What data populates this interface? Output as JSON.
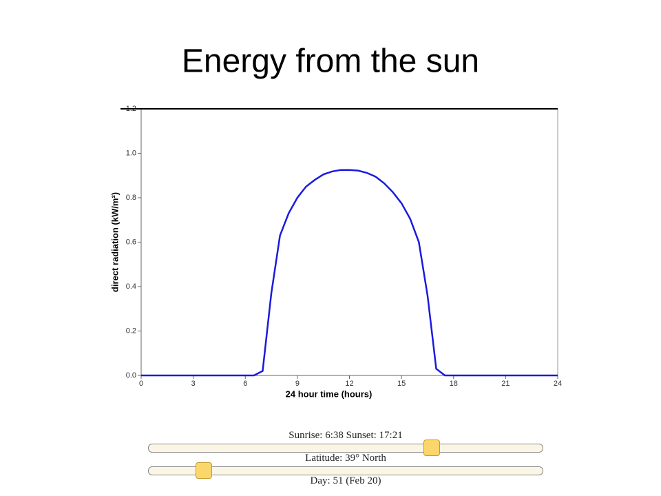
{
  "slide_title": "Energy from the sun",
  "chart_data": {
    "type": "line",
    "xlabel": "24 hour time (hours)",
    "ylabel": "direct radiation (kW/m²)",
    "x": [
      0,
      0.5,
      1,
      1.5,
      2,
      2.5,
      3,
      3.5,
      4,
      4.5,
      5,
      5.5,
      6,
      6.5,
      7,
      7.5,
      8,
      8.5,
      9,
      9.5,
      10,
      10.5,
      11,
      11.5,
      12,
      12.5,
      13,
      13.5,
      14,
      14.5,
      15,
      15.5,
      16,
      16.5,
      17,
      17.5,
      18,
      18.5,
      19,
      19.5,
      20,
      20.5,
      21,
      21.5,
      22,
      22.5,
      23,
      23.5,
      24
    ],
    "series": [
      {
        "name": "direct radiation",
        "color": "#1a1adf",
        "values": [
          0,
          0,
          0,
          0,
          0,
          0,
          0,
          0,
          0,
          0,
          0,
          0,
          0,
          0,
          0.02,
          0.37,
          0.63,
          0.73,
          0.8,
          0.85,
          0.88,
          0.905,
          0.918,
          0.925,
          0.925,
          0.922,
          0.912,
          0.895,
          0.865,
          0.825,
          0.775,
          0.705,
          0.6,
          0.36,
          0.03,
          0,
          0,
          0,
          0,
          0,
          0,
          0,
          0,
          0,
          0,
          0,
          0,
          0,
          0
        ]
      }
    ],
    "xlim": [
      0,
      24
    ],
    "ylim": [
      0,
      1.2
    ],
    "xticks": [
      0,
      3,
      6,
      9,
      12,
      15,
      18,
      21,
      24
    ],
    "yticks": [
      {
        "value": 0,
        "label": "0.0"
      },
      0.2,
      0.4,
      0.6,
      0.8,
      {
        "value": 1,
        "label": "1.0"
      },
      1.2
    ]
  },
  "controls": [
    {
      "caption": "Sunrise: 6:38 Sunset: 17:21"
    },
    {
      "caption": "Latitude: 39° North"
    },
    {
      "caption": "Day: 51 (Feb 20)"
    }
  ]
}
